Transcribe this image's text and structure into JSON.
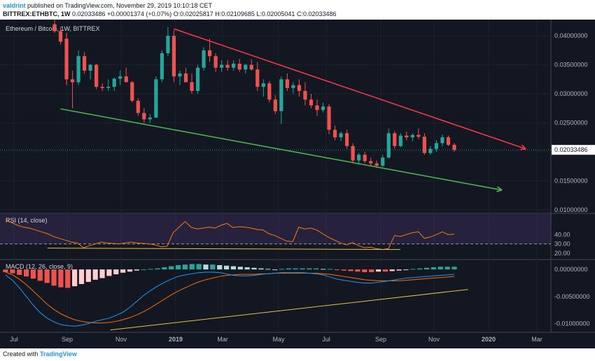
{
  "header": {
    "user": "valdrint",
    "published_text": "published on TradingView.com, November 29, 2019 10:10:18 CET",
    "symbol": "BITTREX:ETHBTC, 1W",
    "last": "0.02033486",
    "change": "+0.00001374 (+0.07%)",
    "open_label": "O:",
    "open": "0.02025817",
    "high_label": "H:",
    "high": "0.02109685",
    "low_label": "L:",
    "low": "0.02005041",
    "close_label": "C:",
    "close": "0.02033486"
  },
  "footer": {
    "created_with": "Created with",
    "brand": "TradingView"
  },
  "colors": {
    "background": "#131722",
    "up": "#26a69a",
    "down": "#ef5350",
    "resistance": "#f23645",
    "support": "#4caf50",
    "rsi_line": "#f57c00",
    "rsi_band": "#7e57c2",
    "macd_line": "#2196f3",
    "signal_line": "#ff6d00",
    "hist_pos_strong": "#26a69a",
    "hist_pos_weak": "#b2dfdb",
    "hist_neg_strong": "#ef5350",
    "hist_neg_weak": "#ffcdd2",
    "divergence_line": "#e0c341"
  },
  "chart_data": [
    {
      "type": "candlestick",
      "title": "Ethereum / Bitcoin, 1W, BITTREX",
      "y_ticks": [
        "0.01000000",
        "0.01500000",
        "0.02000000",
        "0.02500000",
        "0.03000000",
        "0.03500000",
        "0.04000000"
      ],
      "ylim": [
        0.0095,
        0.0428
      ],
      "x_ticks": [
        "Jul",
        "Sep",
        "Nov",
        "2019",
        "Mar",
        "May",
        "Jul",
        "Sep",
        "Nov",
        "2020",
        "Mar"
      ],
      "last_price_label": "0.02033486",
      "candles": [
        [
          0.042,
          0.043,
          0.0405,
          0.0408
        ],
        [
          0.0408,
          0.0415,
          0.0385,
          0.039
        ],
        [
          0.0395,
          0.0405,
          0.0315,
          0.0325
        ],
        [
          0.0325,
          0.034,
          0.0275,
          0.032
        ],
        [
          0.032,
          0.0375,
          0.0315,
          0.0365
        ],
        [
          0.0365,
          0.0372,
          0.0335,
          0.034
        ],
        [
          0.034,
          0.0352,
          0.0325,
          0.035
        ],
        [
          0.035,
          0.0352,
          0.0308,
          0.0312
        ],
        [
          0.0312,
          0.0318,
          0.0305,
          0.031
        ],
        [
          0.031,
          0.0325,
          0.0305,
          0.0312
        ],
        [
          0.0312,
          0.0328,
          0.0305,
          0.0326
        ],
        [
          0.0326,
          0.034,
          0.0315,
          0.033
        ],
        [
          0.033,
          0.0345,
          0.032,
          0.032
        ],
        [
          0.032,
          0.0322,
          0.0285,
          0.0288
        ],
        [
          0.0288,
          0.0292,
          0.0262,
          0.0267
        ],
        [
          0.0267,
          0.0275,
          0.025,
          0.0256
        ],
        [
          0.0256,
          0.0265,
          0.025,
          0.0259
        ],
        [
          0.0259,
          0.033,
          0.0258,
          0.0325
        ],
        [
          0.0325,
          0.0375,
          0.032,
          0.037
        ],
        [
          0.037,
          0.0415,
          0.0365,
          0.04
        ],
        [
          0.04,
          0.041,
          0.032,
          0.033
        ],
        [
          0.033,
          0.034,
          0.0315,
          0.0335
        ],
        [
          0.0335,
          0.0345,
          0.032,
          0.032
        ],
        [
          0.032,
          0.0335,
          0.03,
          0.0305
        ],
        [
          0.0305,
          0.035,
          0.03,
          0.0345
        ],
        [
          0.0345,
          0.038,
          0.034,
          0.0375
        ],
        [
          0.0375,
          0.0395,
          0.0355,
          0.0365
        ],
        [
          0.0365,
          0.037,
          0.0338,
          0.0345
        ],
        [
          0.0345,
          0.0358,
          0.0338,
          0.035
        ],
        [
          0.035,
          0.0358,
          0.034,
          0.0345
        ],
        [
          0.0345,
          0.0358,
          0.034,
          0.0352
        ],
        [
          0.0352,
          0.036,
          0.0338,
          0.0342
        ],
        [
          0.0342,
          0.0352,
          0.0335,
          0.035
        ],
        [
          0.035,
          0.036,
          0.034,
          0.0342
        ],
        [
          0.0342,
          0.0355,
          0.0305,
          0.0312
        ],
        [
          0.0312,
          0.0325,
          0.0295,
          0.0318
        ],
        [
          0.0318,
          0.0322,
          0.0285,
          0.029
        ],
        [
          0.029,
          0.0298,
          0.0265,
          0.027
        ],
        [
          0.027,
          0.033,
          0.0248,
          0.0325
        ],
        [
          0.0325,
          0.0335,
          0.0305,
          0.031
        ],
        [
          0.031,
          0.032,
          0.03,
          0.0315
        ],
        [
          0.0315,
          0.0325,
          0.0295,
          0.0305
        ],
        [
          0.0305,
          0.032,
          0.028,
          0.029
        ],
        [
          0.029,
          0.03,
          0.0275,
          0.028
        ],
        [
          0.028,
          0.029,
          0.0262,
          0.0272
        ],
        [
          0.0272,
          0.0285,
          0.0268,
          0.0278
        ],
        [
          0.0278,
          0.0282,
          0.023,
          0.0238
        ],
        [
          0.0238,
          0.0245,
          0.022,
          0.0225
        ],
        [
          0.0225,
          0.0235,
          0.0218,
          0.0232
        ],
        [
          0.0232,
          0.0238,
          0.0205,
          0.021
        ],
        [
          0.021,
          0.0215,
          0.018,
          0.0185
        ],
        [
          0.0185,
          0.0198,
          0.0178,
          0.0195
        ],
        [
          0.0195,
          0.02,
          0.018,
          0.0184
        ],
        [
          0.0184,
          0.019,
          0.0175,
          0.018
        ],
        [
          0.018,
          0.0185,
          0.0172,
          0.0176
        ],
        [
          0.0176,
          0.0195,
          0.0174,
          0.019
        ],
        [
          0.019,
          0.024,
          0.0188,
          0.0232
        ],
        [
          0.0232,
          0.0236,
          0.0205,
          0.021
        ],
        [
          0.021,
          0.0232,
          0.0208,
          0.0228
        ],
        [
          0.0228,
          0.0235,
          0.022,
          0.0225
        ],
        [
          0.0225,
          0.0232,
          0.0218,
          0.0229
        ],
        [
          0.0229,
          0.024,
          0.0222,
          0.0226
        ],
        [
          0.0226,
          0.0232,
          0.0195,
          0.0198
        ],
        [
          0.0198,
          0.021,
          0.0195,
          0.0205
        ],
        [
          0.0205,
          0.022,
          0.02,
          0.0215
        ],
        [
          0.0215,
          0.023,
          0.021,
          0.0225
        ],
        [
          0.0225,
          0.0228,
          0.021,
          0.0212
        ],
        [
          0.0212,
          0.0215,
          0.02,
          0.0203
        ]
      ],
      "trendlines": [
        {
          "label": "resistance",
          "from": {
            "candle": 20,
            "price": 0.0412
          },
          "to": {
            "candle": 79,
            "price": 0.0205
          }
        },
        {
          "label": "support",
          "from": {
            "candle": 1,
            "price": 0.0274
          },
          "to": {
            "candle": 75,
            "price": 0.0134
          }
        }
      ]
    },
    {
      "type": "line",
      "title": "RSI (14, close)",
      "y_ticks": [
        "20.00",
        "30.00",
        "40.00"
      ],
      "ylim": [
        14,
        62
      ],
      "dashed_level": 30,
      "band": [
        30,
        70
      ],
      "values": [
        55.0,
        53.0,
        50.0,
        48.0,
        47.0,
        45.0,
        43.0,
        41.0,
        38.0,
        36.0,
        34.0,
        32.0,
        31.0,
        26.0,
        28.0,
        30.0,
        32.0,
        31.0,
        30.5,
        30.0,
        31.0,
        32.0,
        31.0,
        30.5,
        30.0,
        29.0,
        27.0,
        27.5,
        42.0,
        48.0,
        54.0,
        48.0,
        46.0,
        47.0,
        48.0,
        47.0,
        50.0,
        52.0,
        47.5,
        48.5,
        48.0,
        47.0,
        45.5,
        45.0,
        41.0,
        39.0,
        36.0,
        33.0,
        32.5,
        48.0,
        46.0,
        47.0,
        45.0,
        41.0,
        37.0,
        34.0,
        31.0,
        29.0,
        31.5,
        28.0,
        26.0,
        26.5,
        25.0,
        24.0,
        25.0,
        39.0,
        38.0,
        40.0,
        42.0,
        43.0,
        36.0,
        37.5,
        40.0,
        43.0,
        40.0,
        40.5
      ],
      "divergence": [
        [
          7,
          25.5
        ],
        [
          66,
          24.0
        ]
      ]
    },
    {
      "type": "bar",
      "title": "MACD (12, 26, close, 9)",
      "y_ticks": [
        "0.00000000",
        "-0.00500000",
        "-0.01000000"
      ],
      "ylim": [
        -0.0115,
        0.0017
      ],
      "histogram": [
        -0.0005,
        -0.0007,
        -0.001,
        -0.0013,
        -0.0017,
        -0.0021,
        -0.0025,
        -0.003,
        -0.0033,
        -0.0034,
        -0.0031,
        -0.0027,
        -0.0023,
        -0.0019,
        -0.0016,
        -0.0012,
        -0.0009,
        -0.0006,
        -0.0004,
        -0.0002,
        0.0,
        0.0001,
        0.0002,
        0.0004,
        0.0006,
        0.0008,
        0.0009,
        0.001,
        0.001,
        0.0009,
        0.0009,
        0.0008,
        0.0007,
        0.0006,
        0.0005,
        0.0004,
        0.0003,
        0.0002,
        0.0001,
        0.0,
        0.0001,
        0.0002,
        0.0002,
        0.0002,
        0.0002,
        0.0002,
        0.0001,
        0.0001,
        -0.0001,
        -0.0002,
        -0.0003,
        -0.0004,
        -0.0005,
        -0.0005,
        -0.0004,
        -0.0004,
        -0.0003,
        -0.0002,
        -0.0001,
        0.0001,
        0.0002,
        0.0003,
        0.0004,
        0.0005,
        0.0005,
        0.0005
      ],
      "macd_line": [
        -0.001,
        -0.002,
        -0.0034,
        -0.005,
        -0.0066,
        -0.008,
        -0.009,
        -0.0097,
        -0.0102,
        -0.0104,
        -0.0105,
        -0.0103,
        -0.01,
        -0.0096,
        -0.0093,
        -0.009,
        -0.0085,
        -0.0079,
        -0.007,
        -0.0059,
        -0.0048,
        -0.0039,
        -0.0031,
        -0.0024,
        -0.0018,
        -0.0013,
        -0.001,
        -0.0008,
        -0.0006,
        -0.0005,
        -0.0005,
        -0.0006,
        -0.0008,
        -0.0011,
        -0.0012,
        -0.0012,
        -0.0011,
        -0.0009,
        -0.0008,
        -0.0007,
        -0.0006,
        -0.0006,
        -0.0006,
        -0.0006,
        -0.0007,
        -0.0008,
        -0.001,
        -0.0014,
        -0.0018,
        -0.002,
        -0.0022,
        -0.0024,
        -0.0025,
        -0.0025,
        -0.0024,
        -0.0022,
        -0.002,
        -0.0018,
        -0.0016,
        -0.0015,
        -0.0014,
        -0.0013,
        -0.0012,
        -0.0011,
        -0.001,
        -0.0009
      ],
      "signal_line": [
        -0.0005,
        -0.001,
        -0.0018,
        -0.0028,
        -0.004,
        -0.0052,
        -0.0064,
        -0.0074,
        -0.0082,
        -0.0088,
        -0.0093,
        -0.0096,
        -0.0098,
        -0.0099,
        -0.0099,
        -0.0098,
        -0.0096,
        -0.0093,
        -0.0089,
        -0.0084,
        -0.0078,
        -0.0071,
        -0.0063,
        -0.0055,
        -0.0047,
        -0.004,
        -0.0034,
        -0.0028,
        -0.0023,
        -0.0019,
        -0.0016,
        -0.0013,
        -0.0011,
        -0.001,
        -0.0009,
        -0.0009,
        -0.0009,
        -0.0008,
        -0.0008,
        -0.0007,
        -0.0007,
        -0.0007,
        -0.0007,
        -0.0007,
        -0.0007,
        -0.0007,
        -0.0008,
        -0.0009,
        -0.0011,
        -0.0013,
        -0.0015,
        -0.0017,
        -0.0019,
        -0.002,
        -0.0021,
        -0.0021,
        -0.0021,
        -0.0021,
        -0.002,
        -0.0019,
        -0.0018,
        -0.0017,
        -0.0016,
        -0.0015,
        -0.0014,
        -0.0013
      ],
      "divergence": [
        [
          2,
          -0.0112
        ],
        [
          67,
          -0.0037
        ]
      ]
    }
  ]
}
